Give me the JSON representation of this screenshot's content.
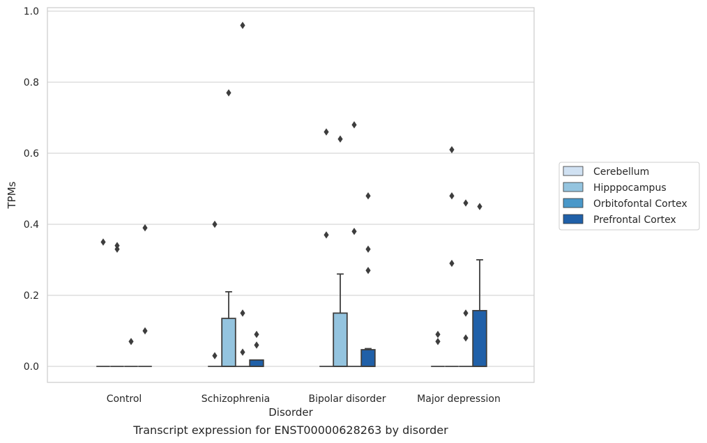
{
  "chart_data": {
    "type": "box",
    "caption": "Transcript expression for ENST00000628263 by disorder",
    "xlabel": "Disorder",
    "ylabel": "TPMs",
    "ylim": [
      -0.045,
      1.01
    ],
    "yticks": [
      0.0,
      0.2,
      0.4,
      0.6,
      0.8,
      1.0
    ],
    "ytick_labels": [
      "0.0",
      "0.2",
      "0.4",
      "0.6",
      "0.8",
      "1.0"
    ],
    "grid": true,
    "legend_position": "right",
    "categories": [
      "Control",
      "Schizophrenia",
      "Bipolar disorder",
      "Major depression"
    ],
    "series": [
      {
        "name": "Cerebellum",
        "color": "#d0e1f2",
        "boxes": [
          {
            "q1": 0,
            "median": 0,
            "q3": 0,
            "whisker_low": 0,
            "whisker_high": 0,
            "outliers": [
              0.35
            ]
          },
          {
            "q1": 0,
            "median": 0,
            "q3": 0,
            "whisker_low": 0,
            "whisker_high": 0,
            "outliers": [
              0.03,
              0.4
            ]
          },
          {
            "q1": 0,
            "median": 0,
            "q3": 0,
            "whisker_low": 0,
            "whisker_high": 0,
            "outliers": [
              0.37,
              0.66
            ]
          },
          {
            "q1": 0,
            "median": 0,
            "q3": 0,
            "whisker_low": 0,
            "whisker_high": 0,
            "outliers": [
              0.07,
              0.09
            ]
          }
        ]
      },
      {
        "name": "Hipppocampus",
        "color": "#94c4df",
        "boxes": [
          {
            "q1": 0,
            "median": 0,
            "q3": 0,
            "whisker_low": 0,
            "whisker_high": 0,
            "outliers": [
              0.33,
              0.34
            ]
          },
          {
            "q1": 0,
            "median": 0,
            "q3": 0.135,
            "whisker_low": 0,
            "whisker_high": 0.21,
            "outliers": [
              0.77
            ]
          },
          {
            "q1": 0,
            "median": 0,
            "q3": 0.15,
            "whisker_low": 0,
            "whisker_high": 0.26,
            "outliers": [
              0.64
            ]
          },
          {
            "q1": 0,
            "median": 0,
            "q3": 0,
            "whisker_low": 0,
            "whisker_high": 0,
            "outliers": [
              0.29,
              0.48,
              0.61
            ]
          }
        ]
      },
      {
        "name": "Orbitofontal Cortex",
        "color": "#4a98c9",
        "boxes": [
          {
            "q1": 0,
            "median": 0,
            "q3": 0,
            "whisker_low": 0,
            "whisker_high": 0,
            "outliers": [
              0.07
            ]
          },
          {
            "q1": 0,
            "median": 0,
            "q3": 0,
            "whisker_low": 0,
            "whisker_high": 0,
            "outliers": [
              0.04,
              0.15,
              0.96
            ]
          },
          {
            "q1": 0,
            "median": 0,
            "q3": 0,
            "whisker_low": 0,
            "whisker_high": 0,
            "outliers": [
              0.38,
              0.68
            ]
          },
          {
            "q1": 0,
            "median": 0,
            "q3": 0,
            "whisker_low": 0,
            "whisker_high": 0,
            "outliers": [
              0.08,
              0.15,
              0.46
            ]
          }
        ]
      },
      {
        "name": "Prefrontal Cortex",
        "color": "#2060a8",
        "boxes": [
          {
            "q1": 0,
            "median": 0,
            "q3": 0,
            "whisker_low": 0,
            "whisker_high": 0,
            "outliers": [
              0.1,
              0.39
            ]
          },
          {
            "q1": 0,
            "median": 0,
            "q3": 0.018,
            "whisker_low": 0,
            "whisker_high": 0.018,
            "outliers": [
              0.06,
              0.09
            ]
          },
          {
            "q1": 0,
            "median": 0,
            "q3": 0.047,
            "whisker_low": 0,
            "whisker_high": 0.05,
            "outliers": [
              0.27,
              0.33,
              0.48
            ]
          },
          {
            "q1": 0,
            "median": 0,
            "q3": 0.157,
            "whisker_low": 0,
            "whisker_high": 0.3,
            "outliers": [
              0.45
            ]
          }
        ]
      }
    ]
  }
}
